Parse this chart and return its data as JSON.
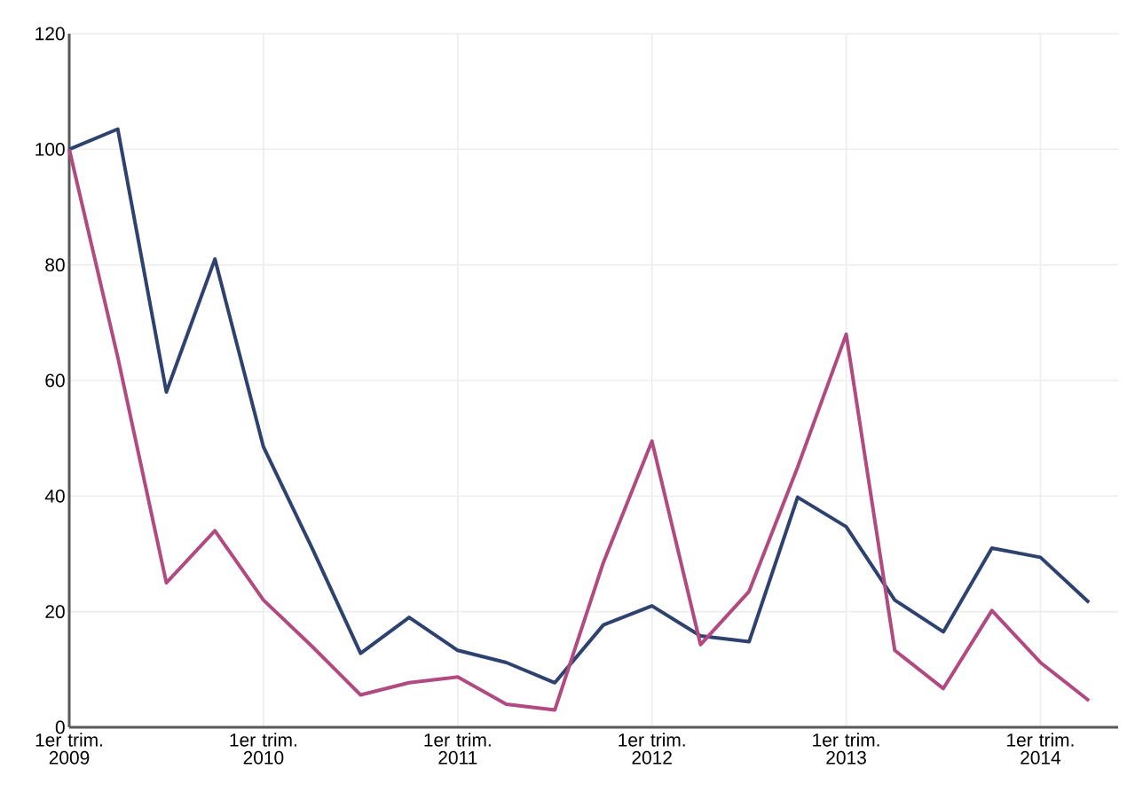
{
  "chart_data": {
    "type": "line",
    "categories": [
      "1er trim. 2009",
      null,
      null,
      null,
      "1er trim. 2010",
      null,
      null,
      null,
      "1er trim. 2011",
      null,
      null,
      null,
      "1er trim. 2012",
      null,
      null,
      null,
      "1er trim. 2013",
      null,
      null,
      null,
      "1er trim. 2014",
      null
    ],
    "series": [
      {
        "color": "#2e4270",
        "values": [
          100,
          103.5,
          58,
          81,
          48.5,
          31,
          12.8,
          19,
          13.3,
          11.2,
          7.7,
          17.7,
          21,
          15.8,
          14.8,
          39.8,
          34.7,
          22,
          16.5,
          31,
          29.4,
          21.6
        ]
      },
      {
        "color": "#b04a80",
        "values": [
          100,
          64,
          25,
          34,
          22,
          14,
          5.6,
          7.7,
          8.7,
          4,
          3,
          28.5,
          49.5,
          14.3,
          23.5,
          45,
          68,
          13.3,
          6.7,
          20.2,
          11.2,
          4.6
        ]
      }
    ],
    "ylim": [
      0,
      120
    ],
    "yticks": [
      0,
      20,
      40,
      60,
      80,
      100,
      120
    ],
    "grid": true,
    "marker": "none",
    "line_style": "solid"
  }
}
